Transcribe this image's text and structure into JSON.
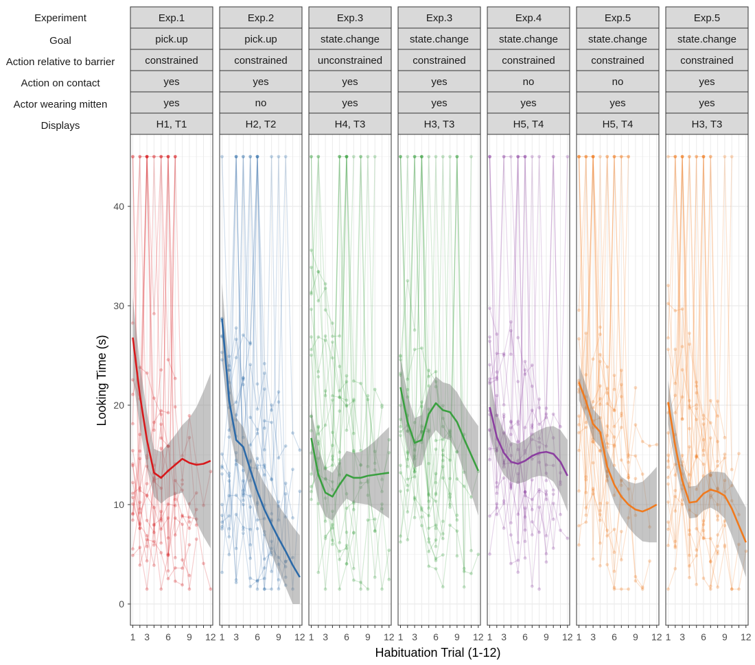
{
  "row_labels": [
    "Experiment",
    "Goal",
    "Action relative to barrier",
    "Action on contact",
    "Actor wearing mitten",
    "Displays"
  ],
  "panels": [
    {
      "strips": [
        "Exp.1",
        "pick.up",
        "constrained",
        "yes",
        "yes",
        "H1, T1"
      ],
      "color": "#d7191c",
      "mean": [
        26.8,
        21.0,
        16.5,
        13.2,
        12.7,
        13.4,
        14.0,
        14.6,
        14.2,
        14.0,
        14.1,
        14.4
      ],
      "ci_half": [
        4.0,
        3.2,
        2.8,
        2.4,
        2.6,
        2.7,
        3.0,
        3.4,
        4.5,
        5.8,
        7.3,
        8.8
      ]
    },
    {
      "strips": [
        "Exp.2",
        "pick.up",
        "constrained",
        "yes",
        "no",
        "H2, T2"
      ],
      "color": "#2c6aa8",
      "mean": [
        28.7,
        20.5,
        16.5,
        15.8,
        13.5,
        11.3,
        9.5,
        8.0,
        6.6,
        5.3,
        3.9,
        2.7
      ],
      "ci_half": [
        3.6,
        2.8,
        2.2,
        2.0,
        2.1,
        2.3,
        2.6,
        3.0,
        3.3,
        3.6,
        3.9,
        4.2
      ]
    },
    {
      "strips": [
        "Exp.3",
        "state.change",
        "unconstrained",
        "yes",
        "yes",
        "H4, T3"
      ],
      "color": "#3aa040",
      "mean": [
        16.7,
        13.0,
        11.2,
        10.8,
        12.0,
        13.0,
        12.7,
        12.7,
        12.9,
        13.0,
        13.1,
        13.2
      ],
      "ci_half": [
        3.0,
        2.6,
        2.4,
        2.4,
        2.3,
        2.4,
        2.5,
        2.6,
        2.9,
        3.4,
        4.0,
        4.6
      ]
    },
    {
      "strips": [
        "Exp.3",
        "state.change",
        "constrained",
        "yes",
        "yes",
        "H3, T3"
      ],
      "color": "#3aa040",
      "mean": [
        21.8,
        18.3,
        16.2,
        16.5,
        19.1,
        20.2,
        19.5,
        19.3,
        18.3,
        16.6,
        15.0,
        13.4
      ],
      "ci_half": [
        3.0,
        2.7,
        2.5,
        2.5,
        2.6,
        2.7,
        2.8,
        2.8,
        3.0,
        3.4,
        3.9,
        4.5
      ]
    },
    {
      "strips": [
        "Exp.4",
        "state.change",
        "constrained",
        "no",
        "yes",
        "H5, T4"
      ],
      "color": "#8b3fa0",
      "mean": [
        19.8,
        16.8,
        15.2,
        14.3,
        14.1,
        14.4,
        14.9,
        15.2,
        15.3,
        15.1,
        14.3,
        12.9
      ],
      "ci_half": [
        2.8,
        2.4,
        2.2,
        2.0,
        2.0,
        2.1,
        2.2,
        2.3,
        2.5,
        2.8,
        3.2,
        3.6
      ]
    },
    {
      "strips": [
        "Exp.5",
        "state.change",
        "constrained",
        "no",
        "yes",
        "H5, T4"
      ],
      "color": "#f07a1e",
      "mean": [
        22.3,
        20.4,
        18.1,
        17.3,
        13.8,
        12.0,
        10.8,
        10.0,
        9.5,
        9.3,
        9.6,
        10.0
      ],
      "ci_half": [
        1.8,
        1.6,
        1.5,
        1.5,
        1.6,
        1.8,
        2.0,
        2.3,
        2.6,
        3.0,
        3.4,
        3.8
      ]
    },
    {
      "strips": [
        "Exp.5",
        "state.change",
        "constrained",
        "yes",
        "yes",
        "H3, T3"
      ],
      "color": "#f07a1e",
      "mean": [
        20.3,
        15.9,
        12.4,
        10.2,
        10.3,
        11.1,
        11.5,
        11.3,
        10.9,
        9.6,
        7.9,
        6.2
      ],
      "ci_half": [
        2.2,
        1.9,
        1.7,
        1.6,
        1.6,
        1.7,
        1.8,
        2.0,
        2.3,
        2.7,
        3.1,
        3.5
      ]
    }
  ],
  "chart_data": {
    "type": "line",
    "xlabel": "Habituation Trial (1-12)",
    "ylabel": "Looking Time (s)",
    "xlim": [
      1,
      12
    ],
    "ylim": [
      0,
      45
    ],
    "x_ticks": [
      "1",
      "3",
      "6",
      "9",
      "12"
    ],
    "y_ticks": [
      "0",
      "10",
      "20",
      "30",
      "40"
    ],
    "x": [
      1,
      2,
      3,
      4,
      5,
      6,
      7,
      8,
      9,
      10,
      11,
      12
    ],
    "grid": true,
    "legend": "none"
  }
}
